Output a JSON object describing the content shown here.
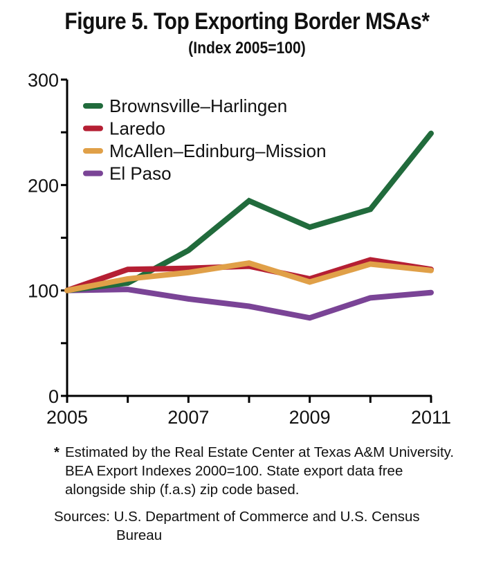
{
  "chart_data": {
    "type": "line",
    "title": "Figure 5. Top Exporting Border MSAs*",
    "subtitle": "(Index 2005=100)",
    "xlabel": "",
    "ylabel": "",
    "x": [
      2005,
      2006,
      2007,
      2008,
      2009,
      2010,
      2011
    ],
    "x_tick_labels": [
      "2005",
      "2007",
      "2009",
      "2011"
    ],
    "x_tick_values": [
      2005,
      2007,
      2009,
      2011
    ],
    "y_tick_labels": [
      "0",
      "100",
      "200",
      "300"
    ],
    "y_tick_values": [
      0,
      100,
      200,
      300
    ],
    "y_minor_ticks": [
      50,
      150,
      250
    ],
    "ylim": [
      0,
      300
    ],
    "xlim": [
      2005,
      2011
    ],
    "grid": false,
    "legend_position": "top-left",
    "series": [
      {
        "name": "Brownsville–Harlingen",
        "color": "#216b3c",
        "values": [
          100,
          107,
          138,
          185,
          160,
          177,
          249
        ]
      },
      {
        "name": "Laredo",
        "color": "#b51f33",
        "values": [
          100,
          120,
          121,
          123,
          111,
          129,
          120
        ]
      },
      {
        "name": "McAllen–Edinburg–Mission",
        "color": "#e0a048",
        "values": [
          100,
          111,
          117,
          126,
          108,
          125,
          119
        ]
      },
      {
        "name": "El Paso",
        "color": "#7a4496",
        "values": [
          100,
          101,
          92,
          85,
          74,
          93,
          98
        ]
      }
    ]
  },
  "footnote": {
    "marker": "*",
    "text": "Estimated by the Real Estate Center at Texas A&M University. BEA Export Indexes 2000=100. State export data free alongside ship (f.a.s) zip code based."
  },
  "sources": {
    "label": "Sources:",
    "text": "U.S. Department of Commerce and U.S. Census",
    "text_cont": "Bureau"
  }
}
